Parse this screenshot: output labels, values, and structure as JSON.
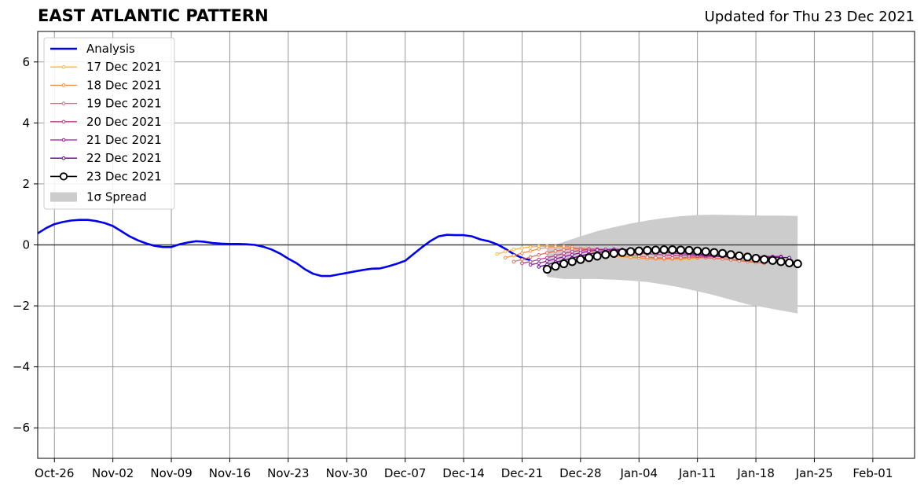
{
  "chart_data": {
    "type": "line",
    "title": "EAST ATLANTIC PATTERN",
    "subtitle": "Updated for Thu 23 Dec 2021",
    "x_unit": "date",
    "xlim": [
      "2021-10-24",
      "2022-02-06"
    ],
    "ylim": [
      -7,
      7
    ],
    "grid": true,
    "legend_position": "top-left",
    "x_ticks": [
      {
        "date": "2021-10-26",
        "label": "Oct-26"
      },
      {
        "date": "2021-11-02",
        "label": "Nov-02"
      },
      {
        "date": "2021-11-09",
        "label": "Nov-09"
      },
      {
        "date": "2021-11-16",
        "label": "Nov-16"
      },
      {
        "date": "2021-11-23",
        "label": "Nov-23"
      },
      {
        "date": "2021-11-30",
        "label": "Nov-30"
      },
      {
        "date": "2021-12-07",
        "label": "Dec-07"
      },
      {
        "date": "2021-12-14",
        "label": "Dec-14"
      },
      {
        "date": "2021-12-21",
        "label": "Dec-21"
      },
      {
        "date": "2021-12-28",
        "label": "Dec-28"
      },
      {
        "date": "2022-01-04",
        "label": "Jan-04"
      },
      {
        "date": "2022-01-11",
        "label": "Jan-11"
      },
      {
        "date": "2022-01-18",
        "label": "Jan-18"
      },
      {
        "date": "2022-01-25",
        "label": "Jan-25"
      },
      {
        "date": "2022-02-01",
        "label": "Feb-01"
      }
    ],
    "y_ticks": [
      {
        "value": -6,
        "label": "−6"
      },
      {
        "value": -4,
        "label": "−4"
      },
      {
        "value": -2,
        "label": "−2"
      },
      {
        "value": 0,
        "label": "0"
      },
      {
        "value": 2,
        "label": "2"
      },
      {
        "value": 4,
        "label": "4"
      },
      {
        "value": 6,
        "label": "6"
      }
    ],
    "analysis": {
      "name": "Analysis",
      "color": "#0000ee",
      "start": "2021-10-24",
      "values": [
        0.38,
        0.55,
        0.68,
        0.75,
        0.8,
        0.82,
        0.82,
        0.78,
        0.72,
        0.62,
        0.45,
        0.28,
        0.15,
        0.05,
        -0.03,
        -0.07,
        -0.07,
        0.02,
        0.08,
        0.12,
        0.1,
        0.06,
        0.04,
        0.03,
        0.03,
        0.02,
        0.0,
        -0.06,
        -0.15,
        -0.28,
        -0.45,
        -0.6,
        -0.8,
        -0.95,
        -1.02,
        -1.02,
        -0.97,
        -0.92,
        -0.87,
        -0.82,
        -0.78,
        -0.77,
        -0.7,
        -0.62,
        -0.52,
        -0.3,
        -0.08,
        0.12,
        0.28,
        0.33,
        0.32,
        0.32,
        0.28,
        0.18,
        0.12,
        0.02,
        -0.13,
        -0.3,
        -0.43,
        -0.5
      ]
    },
    "spread": {
      "name": "1σ Spread",
      "color": "#cccccc",
      "x": [
        "2021-12-24",
        "2021-12-26",
        "2021-12-28",
        "2021-12-30",
        "2022-01-01",
        "2022-01-03",
        "2022-01-05",
        "2022-01-07",
        "2022-01-09",
        "2022-01-11",
        "2022-01-13",
        "2022-01-15",
        "2022-01-17",
        "2022-01-19",
        "2022-01-21",
        "2022-01-23"
      ],
      "upper": [
        -0.1,
        0.1,
        0.28,
        0.45,
        0.58,
        0.7,
        0.8,
        0.88,
        0.94,
        0.98,
        0.99,
        0.98,
        0.97,
        0.96,
        0.96,
        0.95
      ],
      "lower": [
        -1.05,
        -1.12,
        -1.12,
        -1.12,
        -1.14,
        -1.17,
        -1.22,
        -1.3,
        -1.4,
        -1.52,
        -1.65,
        -1.8,
        -1.95,
        -2.05,
        -2.15,
        -2.25
      ]
    },
    "forecasts": [
      {
        "name": "17 Dec 2021",
        "color": "#fcb443",
        "start": "2021-12-18",
        "values": [
          -0.3,
          -0.22,
          -0.15,
          -0.1,
          -0.07,
          -0.05,
          -0.04,
          -0.05,
          -0.08,
          -0.12,
          -0.17,
          -0.23,
          -0.28,
          -0.33,
          -0.37,
          -0.4,
          -0.42,
          -0.43,
          -0.45,
          -0.46,
          -0.47,
          -0.47,
          -0.47,
          -0.46,
          -0.44,
          -0.4,
          -0.35,
          -0.3,
          -0.28,
          -0.28,
          -0.3
        ]
      },
      {
        "name": "18 Dec 2021",
        "color": "#f68c46",
        "start": "2021-12-19",
        "values": [
          -0.42,
          -0.35,
          -0.27,
          -0.2,
          -0.13,
          -0.08,
          -0.05,
          -0.05,
          -0.08,
          -0.12,
          -0.17,
          -0.22,
          -0.27,
          -0.32,
          -0.36,
          -0.4,
          -0.43,
          -0.45,
          -0.46,
          -0.46,
          -0.46,
          -0.45,
          -0.43,
          -0.42,
          -0.42,
          -0.43,
          -0.45,
          -0.47,
          -0.5,
          -0.52,
          -0.55
        ]
      },
      {
        "name": "19 Dec 2021",
        "color": "#e56b5d",
        "start": "2021-12-20",
        "values": [
          -0.55,
          -0.48,
          -0.4,
          -0.33,
          -0.26,
          -0.2,
          -0.16,
          -0.13,
          -0.12,
          -0.13,
          -0.15,
          -0.19,
          -0.24,
          -0.28,
          -0.33,
          -0.37,
          -0.4,
          -0.42,
          -0.43,
          -0.43,
          -0.42,
          -0.41,
          -0.41,
          -0.42,
          -0.44,
          -0.46,
          -0.49,
          -0.52,
          -0.55,
          -0.58,
          -0.6
        ]
      },
      {
        "name": "20 Dec 2021",
        "color": "#c03a83",
        "start": "2021-12-21",
        "values": [
          -0.6,
          -0.55,
          -0.48,
          -0.42,
          -0.35,
          -0.28,
          -0.22,
          -0.18,
          -0.15,
          -0.14,
          -0.15,
          -0.17,
          -0.2,
          -0.23,
          -0.26,
          -0.29,
          -0.31,
          -0.33,
          -0.34,
          -0.35,
          -0.36,
          -0.37,
          -0.38,
          -0.38,
          -0.39,
          -0.4,
          -0.41,
          -0.42,
          -0.43,
          -0.44,
          -0.45
        ]
      },
      {
        "name": "21 Dec 2021",
        "color": "#9c179e",
        "start": "2021-12-22",
        "values": [
          -0.65,
          -0.6,
          -0.53,
          -0.46,
          -0.39,
          -0.32,
          -0.26,
          -0.21,
          -0.17,
          -0.15,
          -0.14,
          -0.15,
          -0.17,
          -0.19,
          -0.21,
          -0.23,
          -0.25,
          -0.27,
          -0.29,
          -0.31,
          -0.33,
          -0.35,
          -0.36,
          -0.37,
          -0.38,
          -0.39,
          -0.39,
          -0.39,
          -0.38,
          -0.38,
          -0.38
        ]
      },
      {
        "name": "22 Dec 2021",
        "color": "#5d038e",
        "start": "2021-12-23",
        "values": [
          -0.72,
          -0.65,
          -0.57,
          -0.5,
          -0.43,
          -0.36,
          -0.3,
          -0.25,
          -0.21,
          -0.18,
          -0.16,
          -0.15,
          -0.15,
          -0.16,
          -0.17,
          -0.19,
          -0.21,
          -0.23,
          -0.26,
          -0.29,
          -0.32,
          -0.35,
          -0.37,
          -0.39,
          -0.4,
          -0.41,
          -0.41,
          -0.41,
          -0.41,
          -0.41,
          -0.42
        ]
      },
      {
        "name": "23 Dec 2021",
        "color": "#000000",
        "start": "2021-12-24",
        "values": [
          -0.8,
          -0.7,
          -0.62,
          -0.55,
          -0.48,
          -0.42,
          -0.37,
          -0.32,
          -0.28,
          -0.25,
          -0.22,
          -0.2,
          -0.18,
          -0.17,
          -0.16,
          -0.16,
          -0.17,
          -0.18,
          -0.2,
          -0.22,
          -0.25,
          -0.28,
          -0.32,
          -0.36,
          -0.4,
          -0.44,
          -0.48,
          -0.51,
          -0.55,
          -0.59,
          -0.62
        ]
      }
    ]
  }
}
